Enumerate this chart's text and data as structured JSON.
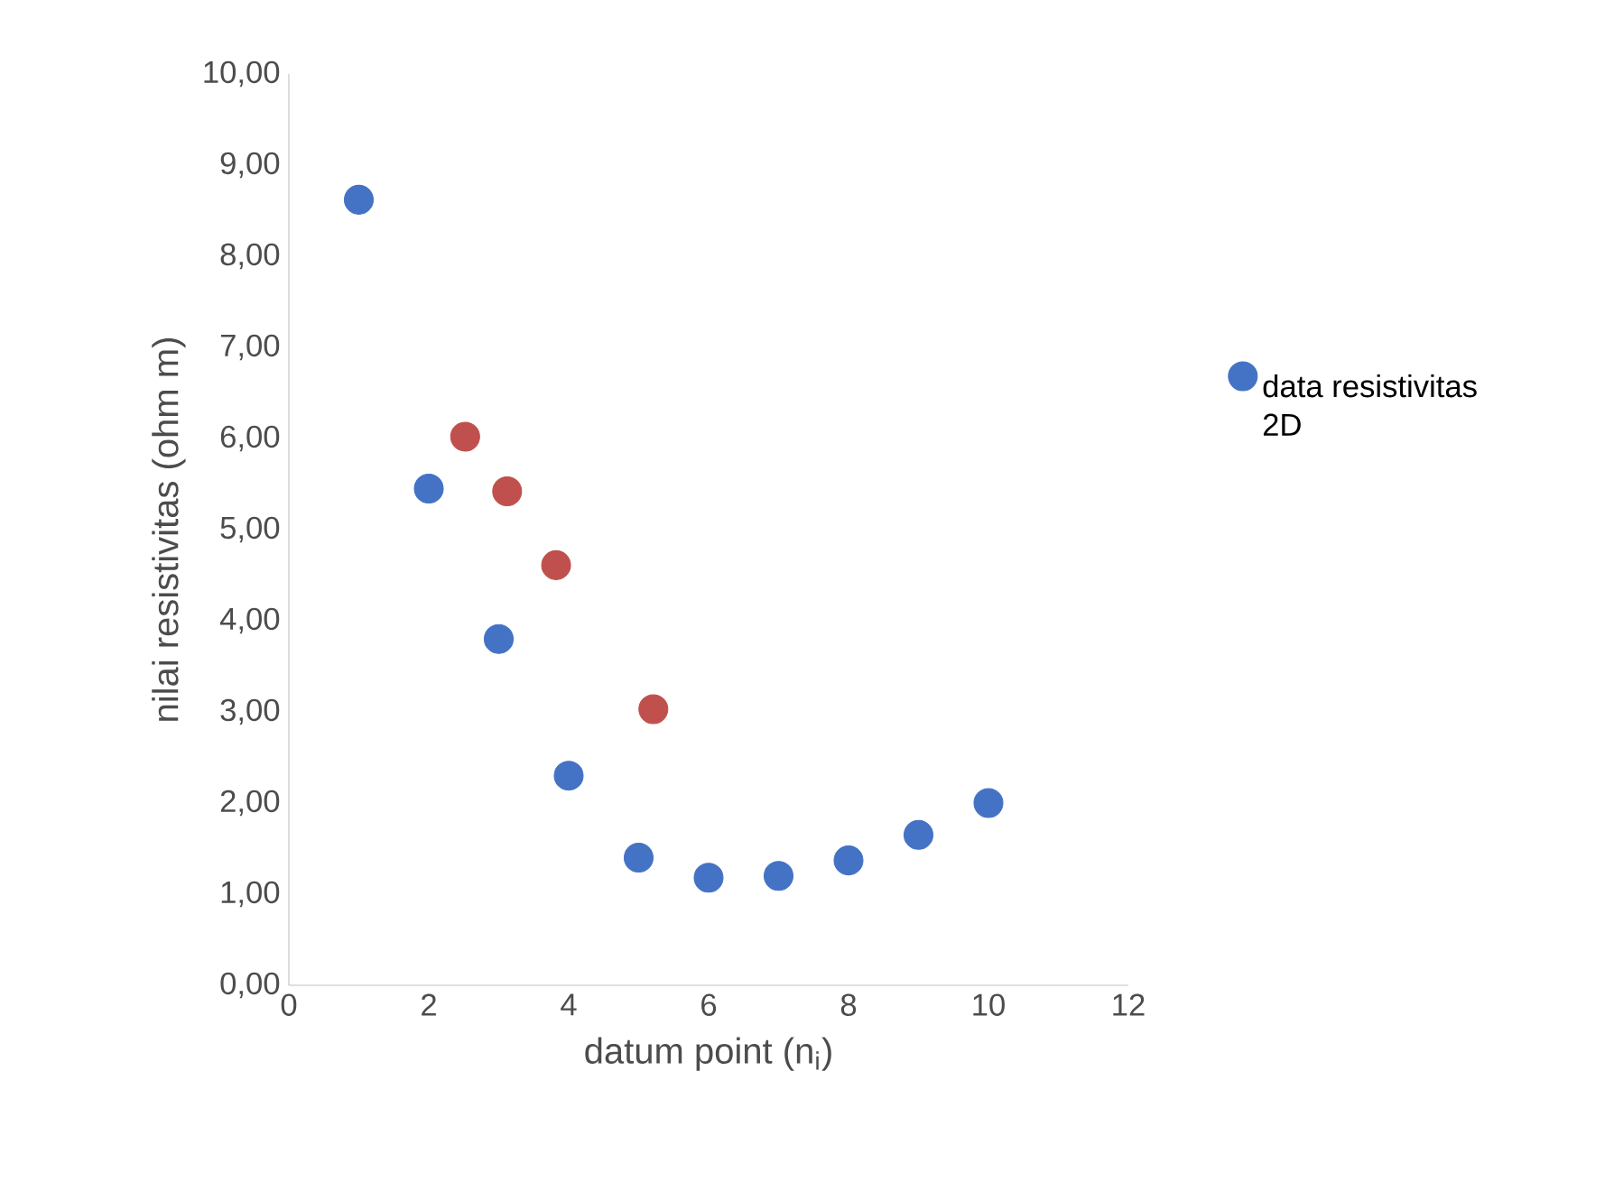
{
  "chart_data": {
    "type": "scatter",
    "xlabel": "datum point (n$_{i}$)",
    "ylabel": "nilai resistivitas (ohm m)",
    "series": [
      {
        "name": "data resistivitas 2D",
        "color": "#4472c4",
        "x": [
          1,
          2,
          3,
          4,
          5,
          6,
          7,
          8,
          9,
          10
        ],
        "values": [
          8.62,
          5.45,
          3.8,
          2.3,
          1.4,
          1.18,
          1.2,
          1.37,
          1.65,
          2.0
        ]
      },
      {
        "color": "#c0504d",
        "x": [
          2.52,
          3.12,
          3.82,
          5.21
        ],
        "values": [
          6.02,
          5.42,
          4.61,
          3.03
        ]
      }
    ],
    "xlim": [
      0,
      12
    ],
    "ylim": [
      0,
      10
    ],
    "xticks": [
      0,
      2,
      4,
      6,
      8,
      10,
      12
    ],
    "yticks": [
      {
        "value": 0,
        "label": "0,00"
      },
      {
        "value": 1,
        "label": "1,00"
      },
      {
        "value": 2,
        "label": "2,00"
      },
      {
        "value": 3,
        "label": "3,00"
      },
      {
        "value": 4,
        "label": "4,00"
      },
      {
        "value": 5,
        "label": "5,00"
      },
      {
        "value": 6,
        "label": "6,00"
      },
      {
        "value": 7,
        "label": "7,00"
      },
      {
        "value": 8,
        "label": "8,00"
      },
      {
        "value": 9,
        "label": "9,00"
      },
      {
        "value": 10,
        "label": "10,00"
      }
    ],
    "marker": "circle",
    "legend": "right",
    "grid": false
  }
}
